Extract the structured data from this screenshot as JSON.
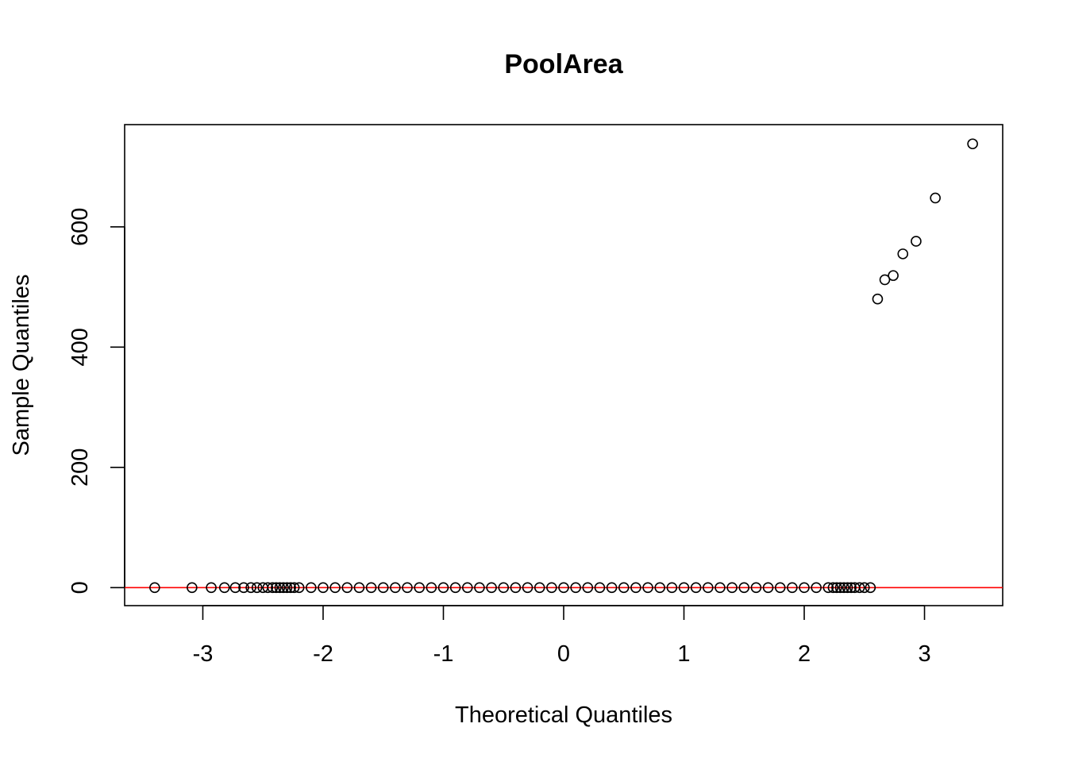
{
  "chart_data": {
    "type": "scatter",
    "title": "PoolArea",
    "xlabel": "Theoretical Quantiles",
    "ylabel": "Sample Quantiles",
    "xlim": [
      -3.65,
      3.65
    ],
    "ylim": [
      -30,
      770
    ],
    "x_ticks": [
      -3,
      -2,
      -1,
      0,
      1,
      2,
      3
    ],
    "x_tick_labels": [
      "-3",
      "-2",
      "-1",
      "0",
      "1",
      "2",
      "3"
    ],
    "y_ticks": [
      0,
      200,
      400,
      600
    ],
    "y_tick_labels": [
      "0",
      "200",
      "400",
      "600"
    ],
    "grid": false,
    "series": [
      {
        "marker": "open-circle",
        "color": "#000000",
        "x": [
          -3.4,
          -3.09,
          -2.93,
          -2.82,
          -2.73,
          -2.66,
          -2.6,
          -2.55,
          -2.5,
          -2.46,
          -2.42,
          -2.39,
          -2.36,
          -2.33,
          -2.3,
          -2.27,
          -2.24,
          -2.2,
          -2.1,
          -2.0,
          -1.9,
          -1.8,
          -1.7,
          -1.6,
          -1.5,
          -1.4,
          -1.3,
          -1.2,
          -1.1,
          -1.0,
          -0.9,
          -0.8,
          -0.7,
          -0.6,
          -0.5,
          -0.4,
          -0.3,
          -0.2,
          -0.1,
          0.0,
          0.1,
          0.2,
          0.3,
          0.4,
          0.5,
          0.6,
          0.7,
          0.8,
          0.9,
          1.0,
          1.1,
          1.2,
          1.3,
          1.4,
          1.5,
          1.6,
          1.7,
          1.8,
          1.9,
          2.0,
          2.1,
          2.2,
          2.24,
          2.27,
          2.3,
          2.33,
          2.36,
          2.39,
          2.42,
          2.46,
          2.5,
          2.55,
          2.61,
          2.67,
          2.74,
          2.82,
          2.93,
          3.09,
          3.4
        ],
        "y": [
          0,
          0,
          0,
          0,
          0,
          0,
          0,
          0,
          0,
          0,
          0,
          0,
          0,
          0,
          0,
          0,
          0,
          0,
          0,
          0,
          0,
          0,
          0,
          0,
          0,
          0,
          0,
          0,
          0,
          0,
          0,
          0,
          0,
          0,
          0,
          0,
          0,
          0,
          0,
          0,
          0,
          0,
          0,
          0,
          0,
          0,
          0,
          0,
          0,
          0,
          0,
          0,
          0,
          0,
          0,
          0,
          0,
          0,
          0,
          0,
          0,
          0,
          0,
          0,
          0,
          0,
          0,
          0,
          0,
          0,
          0,
          0,
          480,
          512,
          519,
          555,
          576,
          648,
          738
        ]
      }
    ],
    "reference_line": {
      "type": "horizontal",
      "y": 0,
      "color": "#ff0000"
    }
  }
}
